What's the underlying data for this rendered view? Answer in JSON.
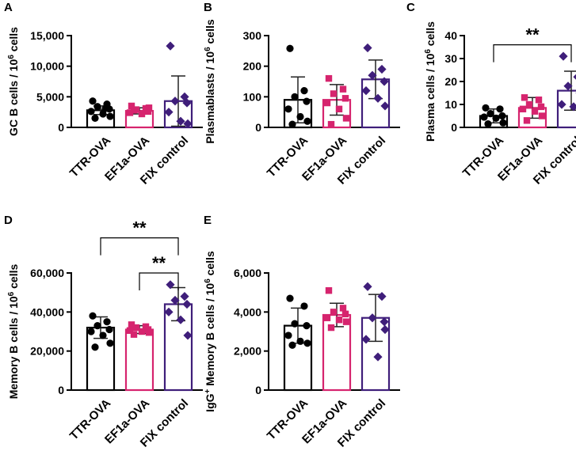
{
  "colors": {
    "TTR-OVA": "#000000",
    "EF1a-OVA": "#d6246e",
    "FIX control": "#3f1e7a"
  },
  "chart_data": [
    {
      "panel": "A",
      "type": "bar",
      "ylabel": "GC B cells / 10",
      "ylabel_sup": "6",
      "ylabel_suffix": " cells",
      "ylim": [
        0,
        15000
      ],
      "ticks": [
        0,
        5000,
        10000,
        15000
      ],
      "tick_labels": [
        "0",
        "5,000",
        "10,000",
        "15,000"
      ],
      "categories": [
        "TTR-OVA",
        "EF1a-OVA",
        "FIX control"
      ],
      "series": [
        {
          "name": "TTR-OVA",
          "mean": 2800,
          "sd": 700,
          "points": [
            4300,
            3800,
            3400,
            3000,
            2600,
            2200,
            1800,
            1500,
            3100
          ]
        },
        {
          "name": "EF1a-OVA",
          "mean": 2700,
          "sd": 500,
          "points": [
            3500,
            3100,
            2900,
            2600,
            2400,
            2200,
            3200,
            2800
          ]
        },
        {
          "name": "FIX control",
          "mean": 4300,
          "sd": 4100,
          "points": [
            13300,
            5000,
            4300,
            4000,
            2500,
            1000,
            600
          ]
        }
      ],
      "significance": []
    },
    {
      "panel": "B",
      "type": "bar",
      "ylabel": "Plasmablasts / 10",
      "ylabel_sup": "6",
      "ylabel_suffix": " cells",
      "ylim": [
        0,
        300
      ],
      "ticks": [
        0,
        100,
        200,
        300
      ],
      "tick_labels": [
        "0",
        "100",
        "200",
        "300"
      ],
      "categories": [
        "TTR-OVA",
        "EF1a-OVA",
        "FIX control"
      ],
      "series": [
        {
          "name": "TTR-OVA",
          "mean": 90,
          "sd": 75,
          "points": [
            258,
            120,
            100,
            85,
            60,
            35,
            20,
            10
          ]
        },
        {
          "name": "EF1a-OVA",
          "mean": 90,
          "sd": 50,
          "points": [
            160,
            125,
            110,
            95,
            80,
            60,
            30,
            10
          ]
        },
        {
          "name": "FIX control",
          "mean": 157,
          "sd": 63,
          "points": [
            260,
            190,
            170,
            150,
            120,
            95,
            70
          ]
        }
      ],
      "significance": []
    },
    {
      "panel": "C",
      "type": "bar",
      "ylabel": "Plasma cells / 10",
      "ylabel_sup": "6",
      "ylabel_suffix": " cells",
      "ylim": [
        0,
        40
      ],
      "ticks": [
        0,
        10,
        20,
        30,
        40
      ],
      "tick_labels": [
        "0",
        "10",
        "20",
        "30",
        "40"
      ],
      "categories": [
        "TTR-OVA",
        "EF1a-OVA",
        "FIX control"
      ],
      "series": [
        {
          "name": "TTR-OVA",
          "mean": 5,
          "sd": 3,
          "points": [
            8.5,
            8,
            6,
            5,
            4.5,
            4,
            2,
            1.5
          ]
        },
        {
          "name": "EF1a-OVA",
          "mean": 8.5,
          "sd": 4.5,
          "points": [
            13,
            12,
            10,
            9,
            8,
            7,
            5,
            3
          ]
        },
        {
          "name": "FIX control",
          "mean": 16,
          "sd": 8.5,
          "points": [
            31,
            22,
            18,
            15,
            10,
            9,
            8
          ]
        }
      ],
      "significance": [
        {
          "label": "**",
          "from": 0,
          "to": 2,
          "level": 36
        }
      ]
    },
    {
      "panel": "D",
      "type": "bar",
      "ylabel": "Memory B cells / 10",
      "ylabel_sup": "6",
      "ylabel_suffix": " cells",
      "ylim": [
        0,
        60000
      ],
      "ticks": [
        0,
        20000,
        40000,
        60000
      ],
      "tick_labels": [
        "0",
        "20,000",
        "40,000",
        "60,000"
      ],
      "categories": [
        "TTR-OVA",
        "EF1a-OVA",
        "FIX control"
      ],
      "series": [
        {
          "name": "TTR-OVA",
          "mean": 32000,
          "sd": 5500,
          "points": [
            38000,
            35000,
            33000,
            31000,
            30000,
            28000,
            24000,
            22000
          ]
        },
        {
          "name": "EF1a-OVA",
          "mean": 31000,
          "sd": 2000,
          "points": [
            33500,
            32500,
            32000,
            31000,
            30500,
            30000,
            29500,
            28500
          ]
        },
        {
          "name": "FIX control",
          "mean": 44000,
          "sd": 8500,
          "points": [
            54000,
            48000,
            46000,
            44000,
            40000,
            36000,
            28000
          ]
        }
      ],
      "significance": [
        {
          "label": "**",
          "from": 0,
          "to": 2,
          "level": 78000
        },
        {
          "label": "**",
          "from": 1,
          "to": 2,
          "level": 60000
        }
      ]
    },
    {
      "panel": "E",
      "type": "bar",
      "ylabel": "IgG",
      "ylabel_sup": "+",
      "ylabel_suffix": " Memory B cells / 10",
      "ylabel_sup2": "6",
      "ylabel_suffix2": " cells",
      "ylim": [
        0,
        6000
      ],
      "ticks": [
        0,
        2000,
        4000,
        6000
      ],
      "tick_labels": [
        "0",
        "2,000",
        "4,000",
        "6,000"
      ],
      "categories": [
        "TTR-OVA",
        "EF1a-OVA",
        "FIX control"
      ],
      "series": [
        {
          "name": "TTR-OVA",
          "mean": 3300,
          "sd": 900,
          "points": [
            4700,
            4300,
            3400,
            3300,
            2800,
            2500,
            2400,
            2300
          ]
        },
        {
          "name": "EF1a-OVA",
          "mean": 3850,
          "sd": 600,
          "points": [
            5100,
            4200,
            4000,
            3900,
            3700,
            3600,
            3500,
            3200
          ]
        },
        {
          "name": "FIX control",
          "mean": 3700,
          "sd": 1200,
          "points": [
            5300,
            4800,
            3700,
            3500,
            2600,
            1700,
            3100
          ]
        }
      ],
      "significance": []
    }
  ]
}
